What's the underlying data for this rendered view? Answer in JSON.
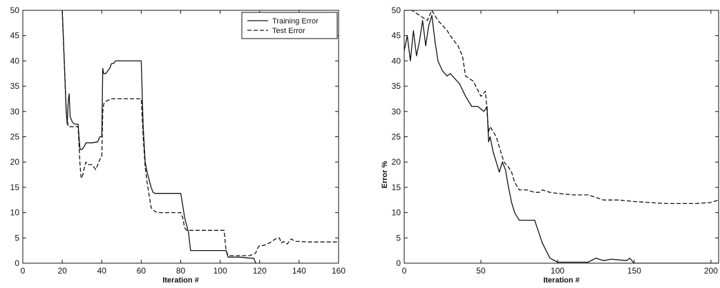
{
  "chart_data": [
    {
      "type": "line",
      "xlabel": "Iteration #",
      "ylabel": "",
      "xlim": [
        0,
        160
      ],
      "ylim": [
        0,
        50
      ],
      "xticks": [
        "0",
        "20",
        "40",
        "60",
        "80",
        "100",
        "120",
        "140",
        "160"
      ],
      "yticks": [
        "0",
        "5",
        "10",
        "15",
        "20",
        "25",
        "30",
        "35",
        "40",
        "45",
        "50"
      ],
      "legend": "top-right",
      "series": [
        {
          "name": "Training Error",
          "style": "solid",
          "x": [
            20,
            21,
            22,
            22.5,
            23,
            23.5,
            24,
            25,
            26,
            28,
            29,
            30,
            31,
            32,
            35,
            38,
            39,
            40,
            40.5,
            41,
            42,
            43,
            44,
            45,
            46,
            47,
            48,
            50,
            52,
            55,
            58,
            60,
            61,
            62,
            63,
            64,
            65,
            66,
            67,
            70,
            75,
            80,
            81,
            82,
            83,
            84,
            85,
            88,
            90,
            95,
            100,
            103,
            104,
            105,
            110,
            115,
            117,
            118
          ],
          "y": [
            50,
            40,
            30,
            27.5,
            32,
            33.5,
            29,
            28,
            27.5,
            27.5,
            22.5,
            22.5,
            23,
            23.8,
            23.8,
            24,
            25,
            25,
            38.5,
            37.5,
            37.5,
            38,
            38.5,
            39.5,
            39.5,
            40,
            40,
            40,
            40,
            40,
            40,
            40,
            27,
            20,
            18,
            16.5,
            15,
            14,
            13.8,
            13.8,
            13.8,
            13.8,
            11.5,
            9,
            7.5,
            6,
            2.5,
            2.5,
            2.5,
            2.5,
            2.5,
            2.5,
            1.2,
            1.2,
            1.2,
            1,
            1,
            0
          ]
        },
        {
          "name": "Test Error",
          "style": "dashed",
          "x": [
            20,
            21,
            22,
            23,
            24,
            25,
            26,
            28,
            29,
            29.5,
            30,
            31,
            32,
            33,
            35,
            37,
            38,
            39,
            40,
            40.5,
            41,
            42,
            45,
            50,
            55,
            60,
            61,
            62,
            63,
            64,
            65,
            66,
            68,
            70,
            75,
            80,
            81,
            82,
            83,
            84,
            85,
            90,
            95,
            100,
            102,
            103,
            104,
            105,
            110,
            115,
            118,
            119,
            120,
            122,
            125,
            128,
            130,
            131,
            132,
            134,
            136,
            138,
            140,
            145,
            150,
            155,
            160
          ],
          "y": [
            50,
            40,
            30,
            27,
            27,
            27,
            27,
            27,
            19.5,
            17,
            16.8,
            18.5,
            20,
            19.5,
            19.5,
            18.5,
            19.5,
            20.5,
            21,
            30,
            31.5,
            32,
            32.5,
            32.5,
            32.5,
            32.5,
            25,
            19,
            16,
            13.5,
            11,
            10.5,
            10,
            10,
            10,
            10,
            9,
            7,
            6.5,
            6.5,
            6.5,
            6.5,
            6.5,
            6.5,
            6.5,
            2.5,
            1.5,
            1.5,
            1.5,
            1.5,
            2,
            3,
            3.5,
            3.5,
            4,
            4.8,
            5,
            4,
            4.3,
            3.8,
            4.8,
            4.3,
            4.3,
            4.2,
            4.2,
            4.2,
            4.2
          ]
        }
      ]
    },
    {
      "type": "line",
      "xlabel": "Iteration #",
      "ylabel": "Error %",
      "xlim": [
        0,
        205
      ],
      "ylim": [
        0,
        50
      ],
      "xticks": [
        "0",
        "50",
        "100",
        "150",
        "200"
      ],
      "yticks": [
        "0",
        "5",
        "10",
        "15",
        "20",
        "25",
        "30",
        "35",
        "40",
        "45",
        "50"
      ],
      "series": [
        {
          "style": "solid",
          "x": [
            0,
            2,
            4,
            6,
            8,
            10,
            12,
            14,
            16,
            18,
            20,
            22,
            25,
            28,
            30,
            33,
            36,
            40,
            44,
            48,
            52,
            54,
            55,
            56,
            58,
            60,
            62,
            64,
            66,
            68,
            70,
            72,
            74,
            75,
            78,
            85,
            90,
            95,
            100,
            120,
            125,
            130,
            135,
            145,
            147,
            150,
            170,
            200,
            205
          ],
          "y": [
            42,
            45,
            40,
            46,
            41,
            44,
            48,
            43,
            47,
            49,
            44,
            40,
            38,
            37,
            37.5,
            36.5,
            35.5,
            33,
            31,
            31,
            30,
            31,
            24,
            25,
            22,
            20,
            18,
            20,
            18.5,
            15,
            12,
            10,
            9,
            8.5,
            8.5,
            8.5,
            4,
            1,
            0.2,
            0.2,
            1,
            0.5,
            0.8,
            0.5,
            1,
            0,
            0,
            0,
            0
          ]
        },
        {
          "style": "dashed",
          "x": [
            0,
            5,
            10,
            15,
            18,
            20,
            22,
            25,
            28,
            30,
            35,
            38,
            40,
            45,
            50,
            53,
            55,
            56,
            60,
            63,
            65,
            68,
            70,
            72,
            75,
            80,
            85,
            88,
            90,
            95,
            100,
            110,
            120,
            130,
            140,
            150,
            160,
            170,
            180,
            190,
            200,
            205
          ],
          "y": [
            50,
            50,
            49,
            48,
            50,
            49,
            48,
            47,
            46,
            45,
            43,
            41,
            37,
            36,
            33,
            34,
            26,
            27,
            25,
            22,
            20,
            19,
            18,
            16,
            14.5,
            14.5,
            14,
            14,
            14.5,
            14,
            13.8,
            13.5,
            13.5,
            12.5,
            12.5,
            12.2,
            12,
            11.8,
            11.8,
            11.8,
            12,
            12.5
          ]
        }
      ]
    }
  ]
}
